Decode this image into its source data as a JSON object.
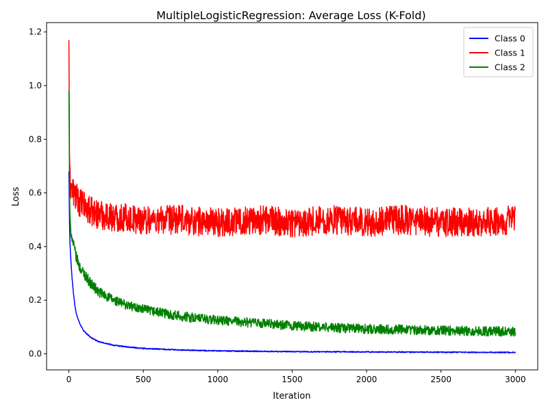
{
  "chart_data": {
    "type": "line",
    "title": "MultipleLogisticRegression: Average Loss (K-Fold)",
    "xlabel": "Iteration",
    "ylabel": "Loss",
    "xlim": [
      -150,
      3150
    ],
    "ylim": [
      -0.06,
      1.235
    ],
    "xticks": [
      0,
      500,
      1000,
      1500,
      2000,
      2500,
      3000
    ],
    "yticks": [
      0.0,
      0.2,
      0.4,
      0.6,
      0.8,
      1.0,
      1.2
    ],
    "xtick_labels": [
      "0",
      "500",
      "1000",
      "1500",
      "2000",
      "2500",
      "3000"
    ],
    "ytick_labels": [
      "0.0",
      "0.2",
      "0.4",
      "0.6",
      "0.8",
      "1.0",
      "1.2"
    ],
    "grid": false,
    "legend_position": "top-right",
    "series": [
      {
        "name": "Class 0",
        "color": "#0000ff",
        "x": [
          0,
          5,
          10,
          20,
          30,
          40,
          50,
          75,
          100,
          150,
          200,
          300,
          400,
          500,
          750,
          1000,
          1500,
          2000,
          2500,
          3000
        ],
        "y": [
          0.68,
          0.45,
          0.38,
          0.29,
          0.23,
          0.18,
          0.15,
          0.11,
          0.085,
          0.06,
          0.045,
          0.032,
          0.025,
          0.02,
          0.014,
          0.011,
          0.008,
          0.007,
          0.006,
          0.005
        ]
      },
      {
        "name": "Class 1",
        "color": "#ff0000",
        "x": [
          0,
          5,
          10,
          25,
          50,
          100,
          150,
          200,
          300,
          500,
          750,
          1000,
          1250,
          1500,
          1750,
          2000,
          2250,
          2500,
          2750,
          3000
        ],
        "y": [
          1.17,
          0.66,
          0.63,
          0.61,
          0.58,
          0.55,
          0.53,
          0.52,
          0.51,
          0.5,
          0.5,
          0.49,
          0.5,
          0.49,
          0.5,
          0.49,
          0.5,
          0.49,
          0.49,
          0.5
        ]
      },
      {
        "name": "Class 2",
        "color": "#008000",
        "x": [
          0,
          5,
          10,
          25,
          50,
          75,
          100,
          150,
          200,
          300,
          400,
          500,
          750,
          1000,
          1250,
          1500,
          1750,
          2000,
          2250,
          2500,
          2750,
          3000
        ],
        "y": [
          0.98,
          0.55,
          0.47,
          0.42,
          0.36,
          0.32,
          0.3,
          0.26,
          0.23,
          0.2,
          0.18,
          0.165,
          0.14,
          0.125,
          0.115,
          0.105,
          0.098,
          0.093,
          0.09,
          0.087,
          0.085,
          0.083
        ]
      }
    ]
  }
}
